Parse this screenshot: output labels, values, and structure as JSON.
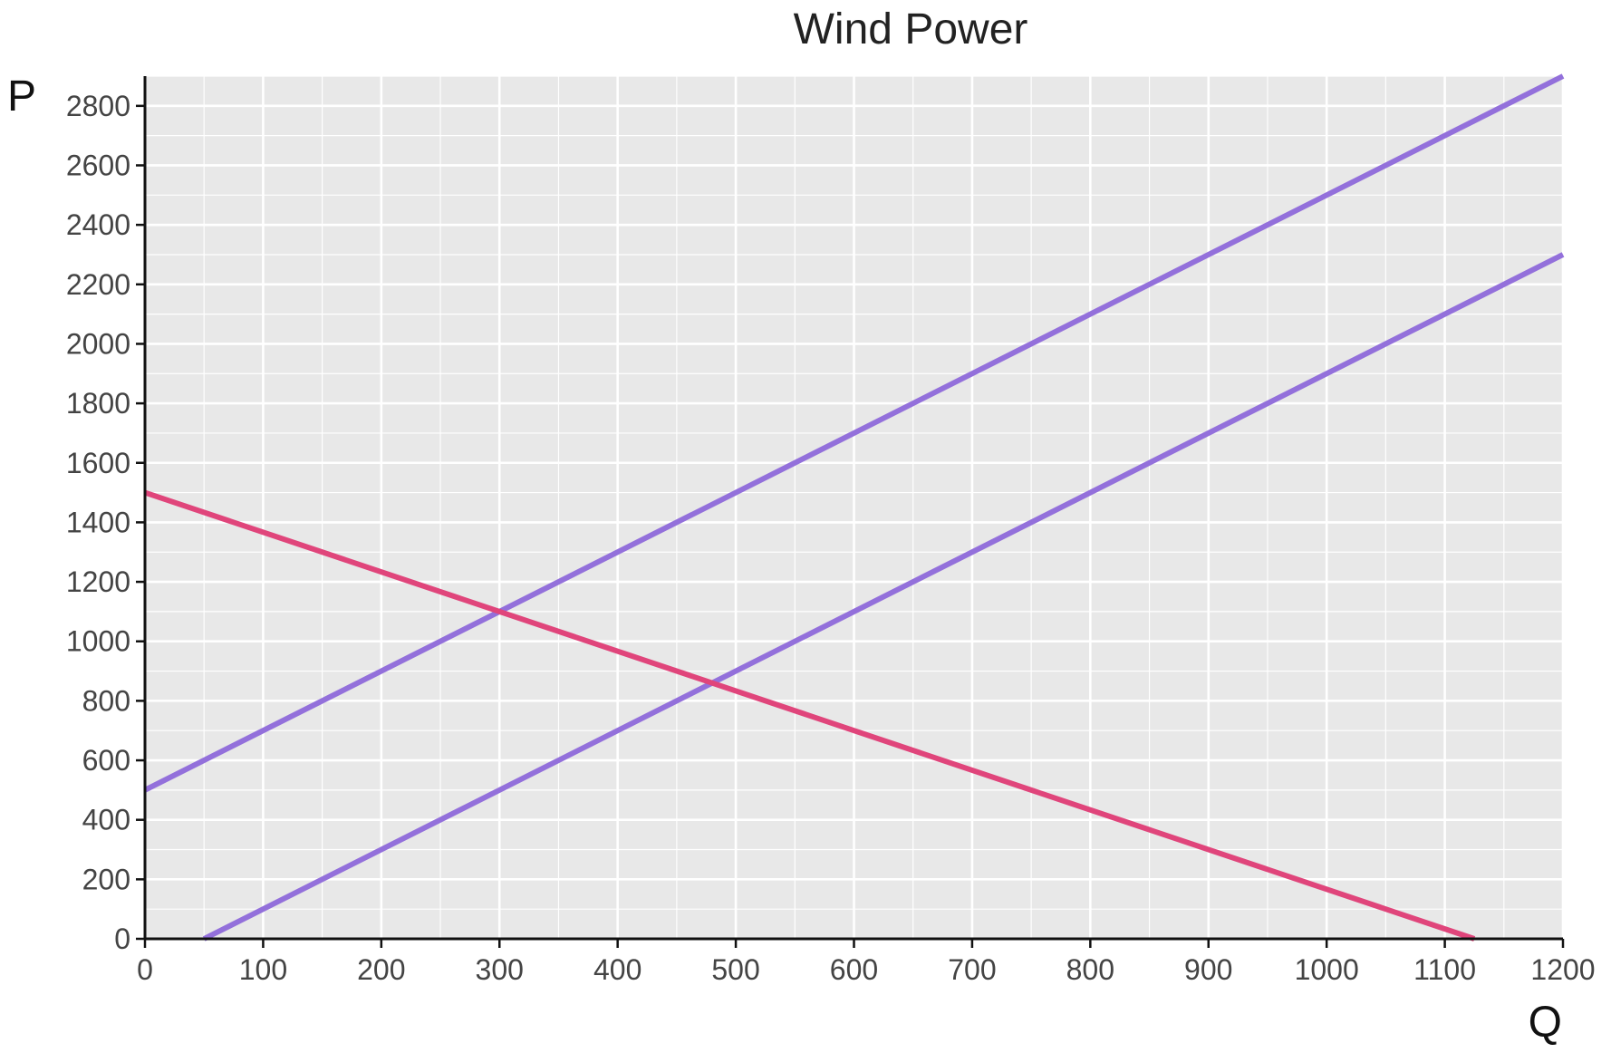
{
  "chart_data": {
    "type": "line",
    "title": "Wind Power",
    "xlabel": "Q",
    "ylabel": "P",
    "xlim": [
      0,
      1200
    ],
    "ylim": [
      0,
      2900
    ],
    "x_ticks": [
      0,
      100,
      200,
      300,
      400,
      500,
      600,
      700,
      800,
      900,
      1000,
      1100,
      1200
    ],
    "y_ticks": [
      0,
      200,
      400,
      600,
      800,
      1000,
      1200,
      1400,
      1600,
      1800,
      2000,
      2200,
      2400,
      2600,
      2800
    ],
    "grid": true,
    "series": [
      {
        "x": [
          0,
          1200
        ],
        "y": [
          500,
          2900
        ],
        "color": "#9370DB"
      },
      {
        "x": [
          50,
          1200
        ],
        "y": [
          0,
          2300
        ],
        "color": "#9370DB"
      },
      {
        "x": [
          0,
          1125
        ],
        "y": [
          1500,
          0
        ],
        "color": "#E0457B"
      }
    ]
  }
}
